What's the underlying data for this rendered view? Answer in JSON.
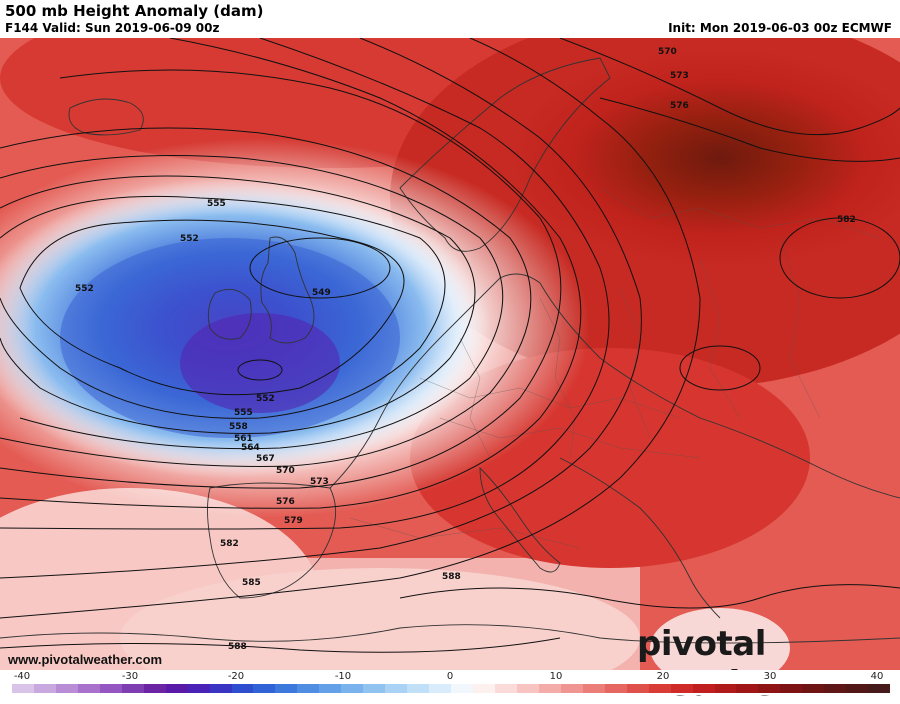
{
  "header": {
    "title": "500 mb Height Anomaly (dam)",
    "valid": "F144 Valid: Sun 2019-06-09 00z",
    "init": "Init: Mon 2019-06-03 00z ECMWF"
  },
  "watermark": {
    "url": "www.pivotalweather.com",
    "logo": "pivotal weather"
  },
  "contour_labels": [
    "549",
    "552",
    "552",
    "552",
    "555",
    "555",
    "558",
    "561",
    "564",
    "567",
    "570",
    "570",
    "573",
    "573",
    "576",
    "576",
    "579",
    "582",
    "582",
    "585",
    "588",
    "588"
  ],
  "colorbar": {
    "ticks": [
      "-40",
      "-30",
      "-20",
      "-10",
      "0",
      "10",
      "20",
      "30",
      "40"
    ],
    "colors": [
      "#d9c3e8",
      "#c9a8e0",
      "#b98cd6",
      "#a871cc",
      "#9456c0",
      "#7f3db2",
      "#6a24a4",
      "#5a1aa8",
      "#4a22b8",
      "#3a34c4",
      "#2e4ecf",
      "#3163d6",
      "#3d78dc",
      "#4e8de2",
      "#63a0e7",
      "#79b2ec",
      "#91c3f1",
      "#a9d2f5",
      "#c1e0f8",
      "#d9ecfb",
      "#f1f7fd",
      "#fdf1f0",
      "#fbdbd9",
      "#f8c4c1",
      "#f4aca9",
      "#f09591",
      "#eb7e79",
      "#e66762",
      "#e0504b",
      "#d93b37",
      "#cf2a27",
      "#c11f1f",
      "#b01a1a",
      "#a01616",
      "#8f1414",
      "#7e1313",
      "#6e1414",
      "#5f1616",
      "#521818",
      "#461a1a"
    ]
  },
  "colors": {
    "negative_core": "#5a2bbd",
    "positive_core": "#7a1c10",
    "neutral": "#ffffff"
  }
}
